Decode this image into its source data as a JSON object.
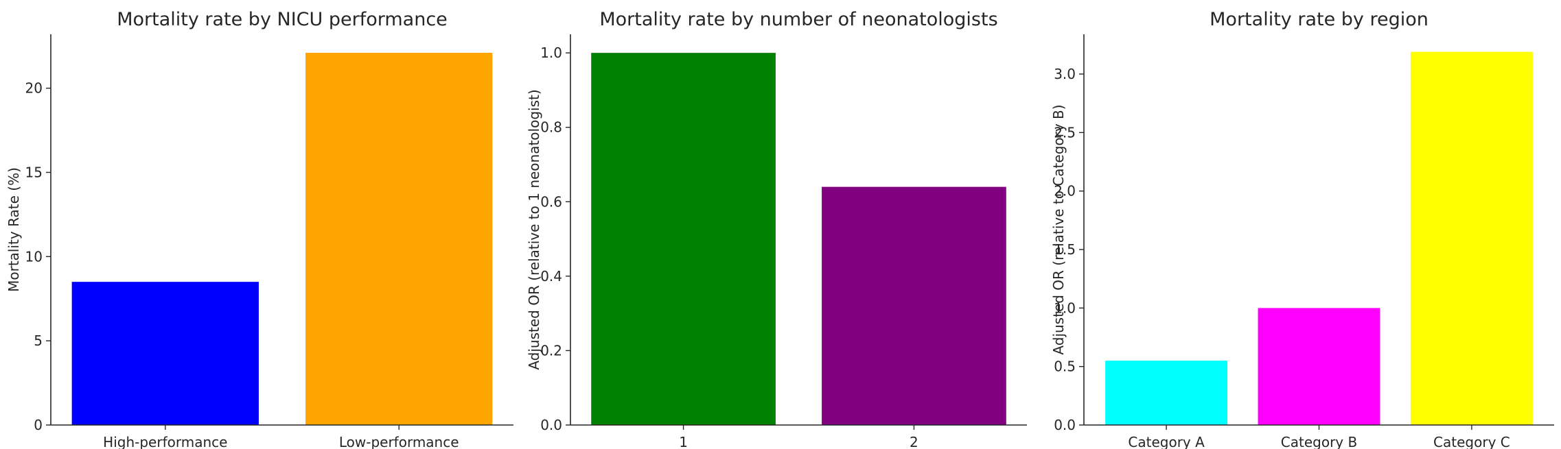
{
  "chart_data": [
    {
      "type": "bar",
      "title": "Mortality rate by NICU performance",
      "xlabel": "",
      "ylabel": "Mortality Rate (%)",
      "categories": [
        "High-performance",
        "Low-performance"
      ],
      "values": [
        8.5,
        22.1
      ],
      "colors": [
        "#0000ff",
        "#ffa500"
      ],
      "ylim": [
        0,
        23.2
      ],
      "yticks": [
        0,
        5,
        10,
        15,
        20
      ],
      "grid": false
    },
    {
      "type": "bar",
      "title": "Mortality rate by number of neonatologists",
      "xlabel": "",
      "ylabel": "Adjusted OR (relative to 1 neonatologist)",
      "categories": [
        "1",
        "2"
      ],
      "values": [
        1.0,
        0.64
      ],
      "colors": [
        "#008000",
        "#800080"
      ],
      "ylim": [
        0,
        1.05
      ],
      "yticks": [
        0.0,
        0.2,
        0.4,
        0.6,
        0.8,
        1.0
      ],
      "grid": false
    },
    {
      "type": "bar",
      "title": "Mortality rate by region",
      "xlabel": "",
      "ylabel": "Adjusted OR (relative to Category B)",
      "categories": [
        "Category A",
        "Category B",
        "Category C"
      ],
      "values": [
        0.55,
        1.0,
        3.19
      ],
      "colors": [
        "#00ffff",
        "#ff00ff",
        "#ffff00"
      ],
      "ylim": [
        0,
        3.34
      ],
      "yticks": [
        0.0,
        0.5,
        1.0,
        1.5,
        2.0,
        2.5,
        3.0
      ],
      "grid": false
    }
  ]
}
